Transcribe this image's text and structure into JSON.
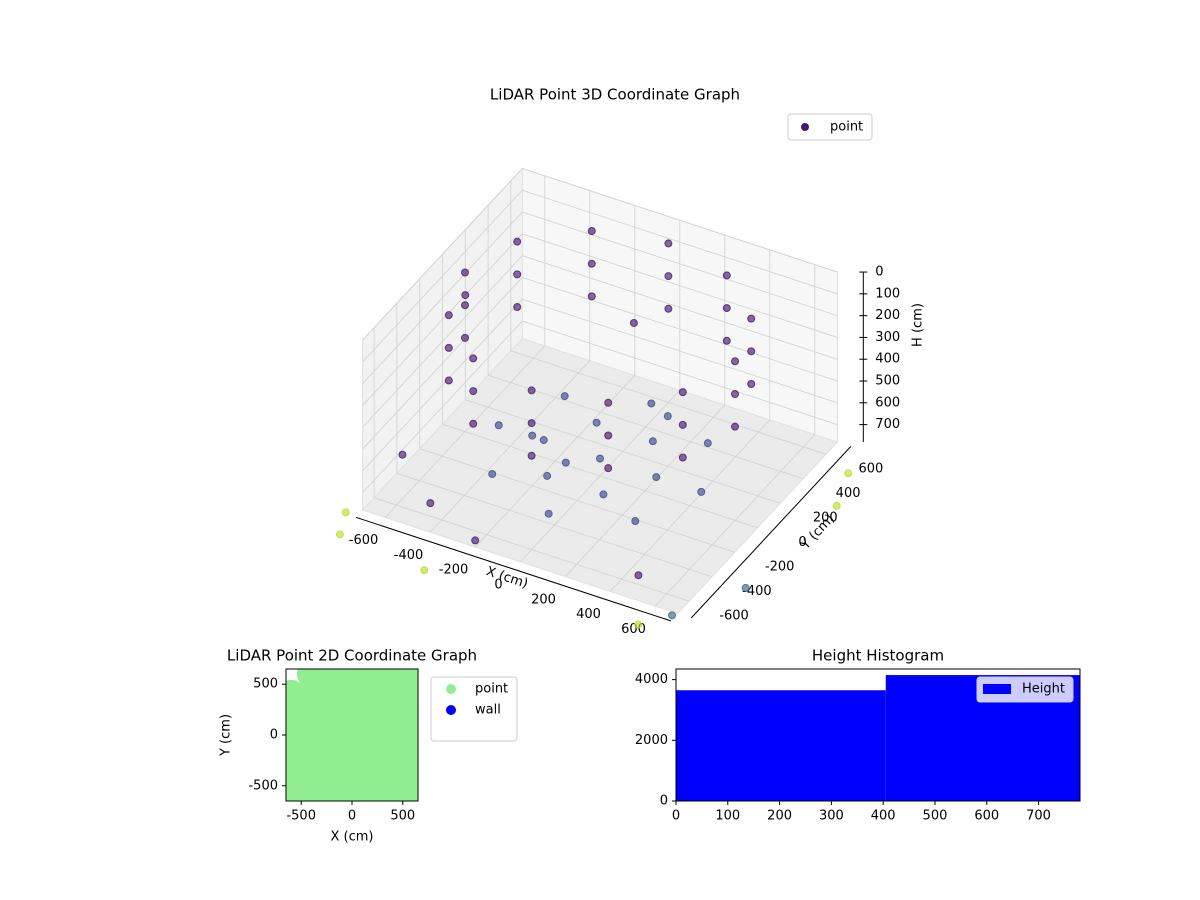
{
  "chart_data": [
    {
      "type": "scatter3d",
      "title": "LiDAR Point 3D Coordinate Graph",
      "xlabel": "X (cm)",
      "ylabel": "Y (cm)",
      "zlabel": "H (cm)",
      "xlim": [
        -700,
        700
      ],
      "ylim": [
        -700,
        700
      ],
      "zlim": [
        0,
        780
      ],
      "zinvert": true,
      "xticks": [
        -600,
        -400,
        -200,
        0,
        200,
        400,
        600
      ],
      "yticks": [
        -600,
        -400,
        -200,
        0,
        200,
        400,
        600
      ],
      "zticks": [
        0,
        100,
        200,
        300,
        400,
        500,
        600,
        700
      ],
      "grid": true,
      "legend": "upper right",
      "series": [
        {
          "name": "point",
          "color": "#46186b",
          "x": [
            600,
            520,
            300,
            0,
            -300,
            -520,
            -600,
            -520,
            -300,
            0,
            300,
            520,
            600,
            520,
            300,
            0,
            -300,
            -520,
            -600,
            -520,
            -300,
            0,
            300,
            520,
            600,
            520,
            300,
            0,
            -300,
            -520,
            -600,
            -520,
            -300,
            0,
            300,
            520,
            -650,
            -700,
            500,
            -200,
            -450,
            100
          ],
          "y": [
            0,
            300,
            520,
            600,
            520,
            300,
            0,
            -300,
            -520,
            -600,
            -520,
            -300,
            0,
            300,
            520,
            600,
            520,
            300,
            0,
            -300,
            -520,
            -600,
            -520,
            -300,
            0,
            300,
            520,
            600,
            520,
            300,
            0,
            -300,
            -520,
            -600,
            -520,
            -300,
            -450,
            200,
            -650,
            -700,
            -600,
            100
          ],
          "z": [
            50,
            50,
            50,
            50,
            50,
            50,
            50,
            50,
            50,
            50,
            50,
            50,
            200,
            200,
            200,
            200,
            200,
            200,
            200,
            200,
            200,
            200,
            200,
            200,
            350,
            350,
            350,
            350,
            350,
            350,
            350,
            350,
            350,
            350,
            350,
            350,
            650,
            300,
            700,
            750,
            720,
            100
          ]
        },
        {
          "color": "#3e4a89",
          "x": [
            0,
            250,
            125,
            -125,
            -250,
            -125,
            125,
            450,
            318,
            0,
            -318,
            -450,
            -318,
            0,
            318,
            200,
            -200,
            0
          ],
          "y": [
            0,
            0,
            217,
            217,
            0,
            -217,
            -217,
            0,
            318,
            450,
            318,
            0,
            -318,
            -450,
            -318,
            200,
            -200,
            -300
          ],
          "z": [
            700,
            700,
            700,
            700,
            700,
            700,
            700,
            700,
            700,
            700,
            700,
            700,
            700,
            700,
            700,
            550,
            550,
            550
          ]
        },
        {
          "color": "#31688e",
          "x": [
            700,
            850
          ],
          "y": [
            -750,
            -400
          ],
          "z": [
            760,
            780
          ]
        },
        {
          "color": "#b5de2b",
          "x": [
            -750,
            -700,
            900,
            850,
            600,
            -300
          ],
          "y": [
            -750,
            -900,
            300,
            500,
            -850,
            -950
          ],
          "z": [
            780,
            780,
            780,
            760,
            780,
            780
          ]
        }
      ]
    },
    {
      "type": "scatter",
      "title": "LiDAR Point 2D Coordinate Graph",
      "xlabel": "X (cm)",
      "ylabel": "Y (cm)",
      "xlim": [
        -650,
        650
      ],
      "ylim": [
        -650,
        650
      ],
      "xticks": [
        -500,
        0,
        500
      ],
      "yticks": [
        -500,
        0,
        500
      ],
      "legend": "outside right",
      "series": [
        {
          "name": "point",
          "color": "#90ee90",
          "x": [
            -600,
            -400,
            -200,
            0,
            200,
            400,
            600,
            -600,
            -400,
            -200,
            0,
            200,
            400,
            600,
            -600,
            -400,
            -200,
            0,
            200,
            400,
            600,
            -600,
            -400,
            -200,
            0,
            200,
            400,
            600,
            -600,
            -400,
            -200,
            0,
            200,
            400,
            600,
            -600,
            -400,
            -200,
            0,
            200,
            400,
            600,
            -400,
            -200,
            0,
            200,
            400,
            600
          ],
          "y": [
            -600,
            -600,
            -600,
            -600,
            -600,
            -600,
            -600,
            -400,
            -400,
            -400,
            -400,
            -400,
            -400,
            -400,
            -200,
            -200,
            -200,
            -200,
            -200,
            -200,
            -200,
            0,
            0,
            0,
            0,
            0,
            0,
            0,
            200,
            200,
            200,
            200,
            200,
            200,
            200,
            400,
            400,
            400,
            400,
            400,
            400,
            400,
            600,
            600,
            600,
            600,
            600,
            600
          ]
        },
        {
          "name": "wall",
          "color": "#0000ff",
          "x": [],
          "y": []
        }
      ]
    },
    {
      "type": "histogram",
      "title": "Height Histogram",
      "bins": [
        0,
        405,
        780
      ],
      "values": [
        3650,
        4150
      ],
      "xlim": [
        0,
        780
      ],
      "ylim": [
        0,
        4350
      ],
      "xticks": [
        0,
        100,
        200,
        300,
        400,
        500,
        600,
        700
      ],
      "yticks": [
        0,
        2000,
        4000
      ],
      "color": "#0000ff",
      "legend": "upper right",
      "legend_label": "Height"
    }
  ]
}
